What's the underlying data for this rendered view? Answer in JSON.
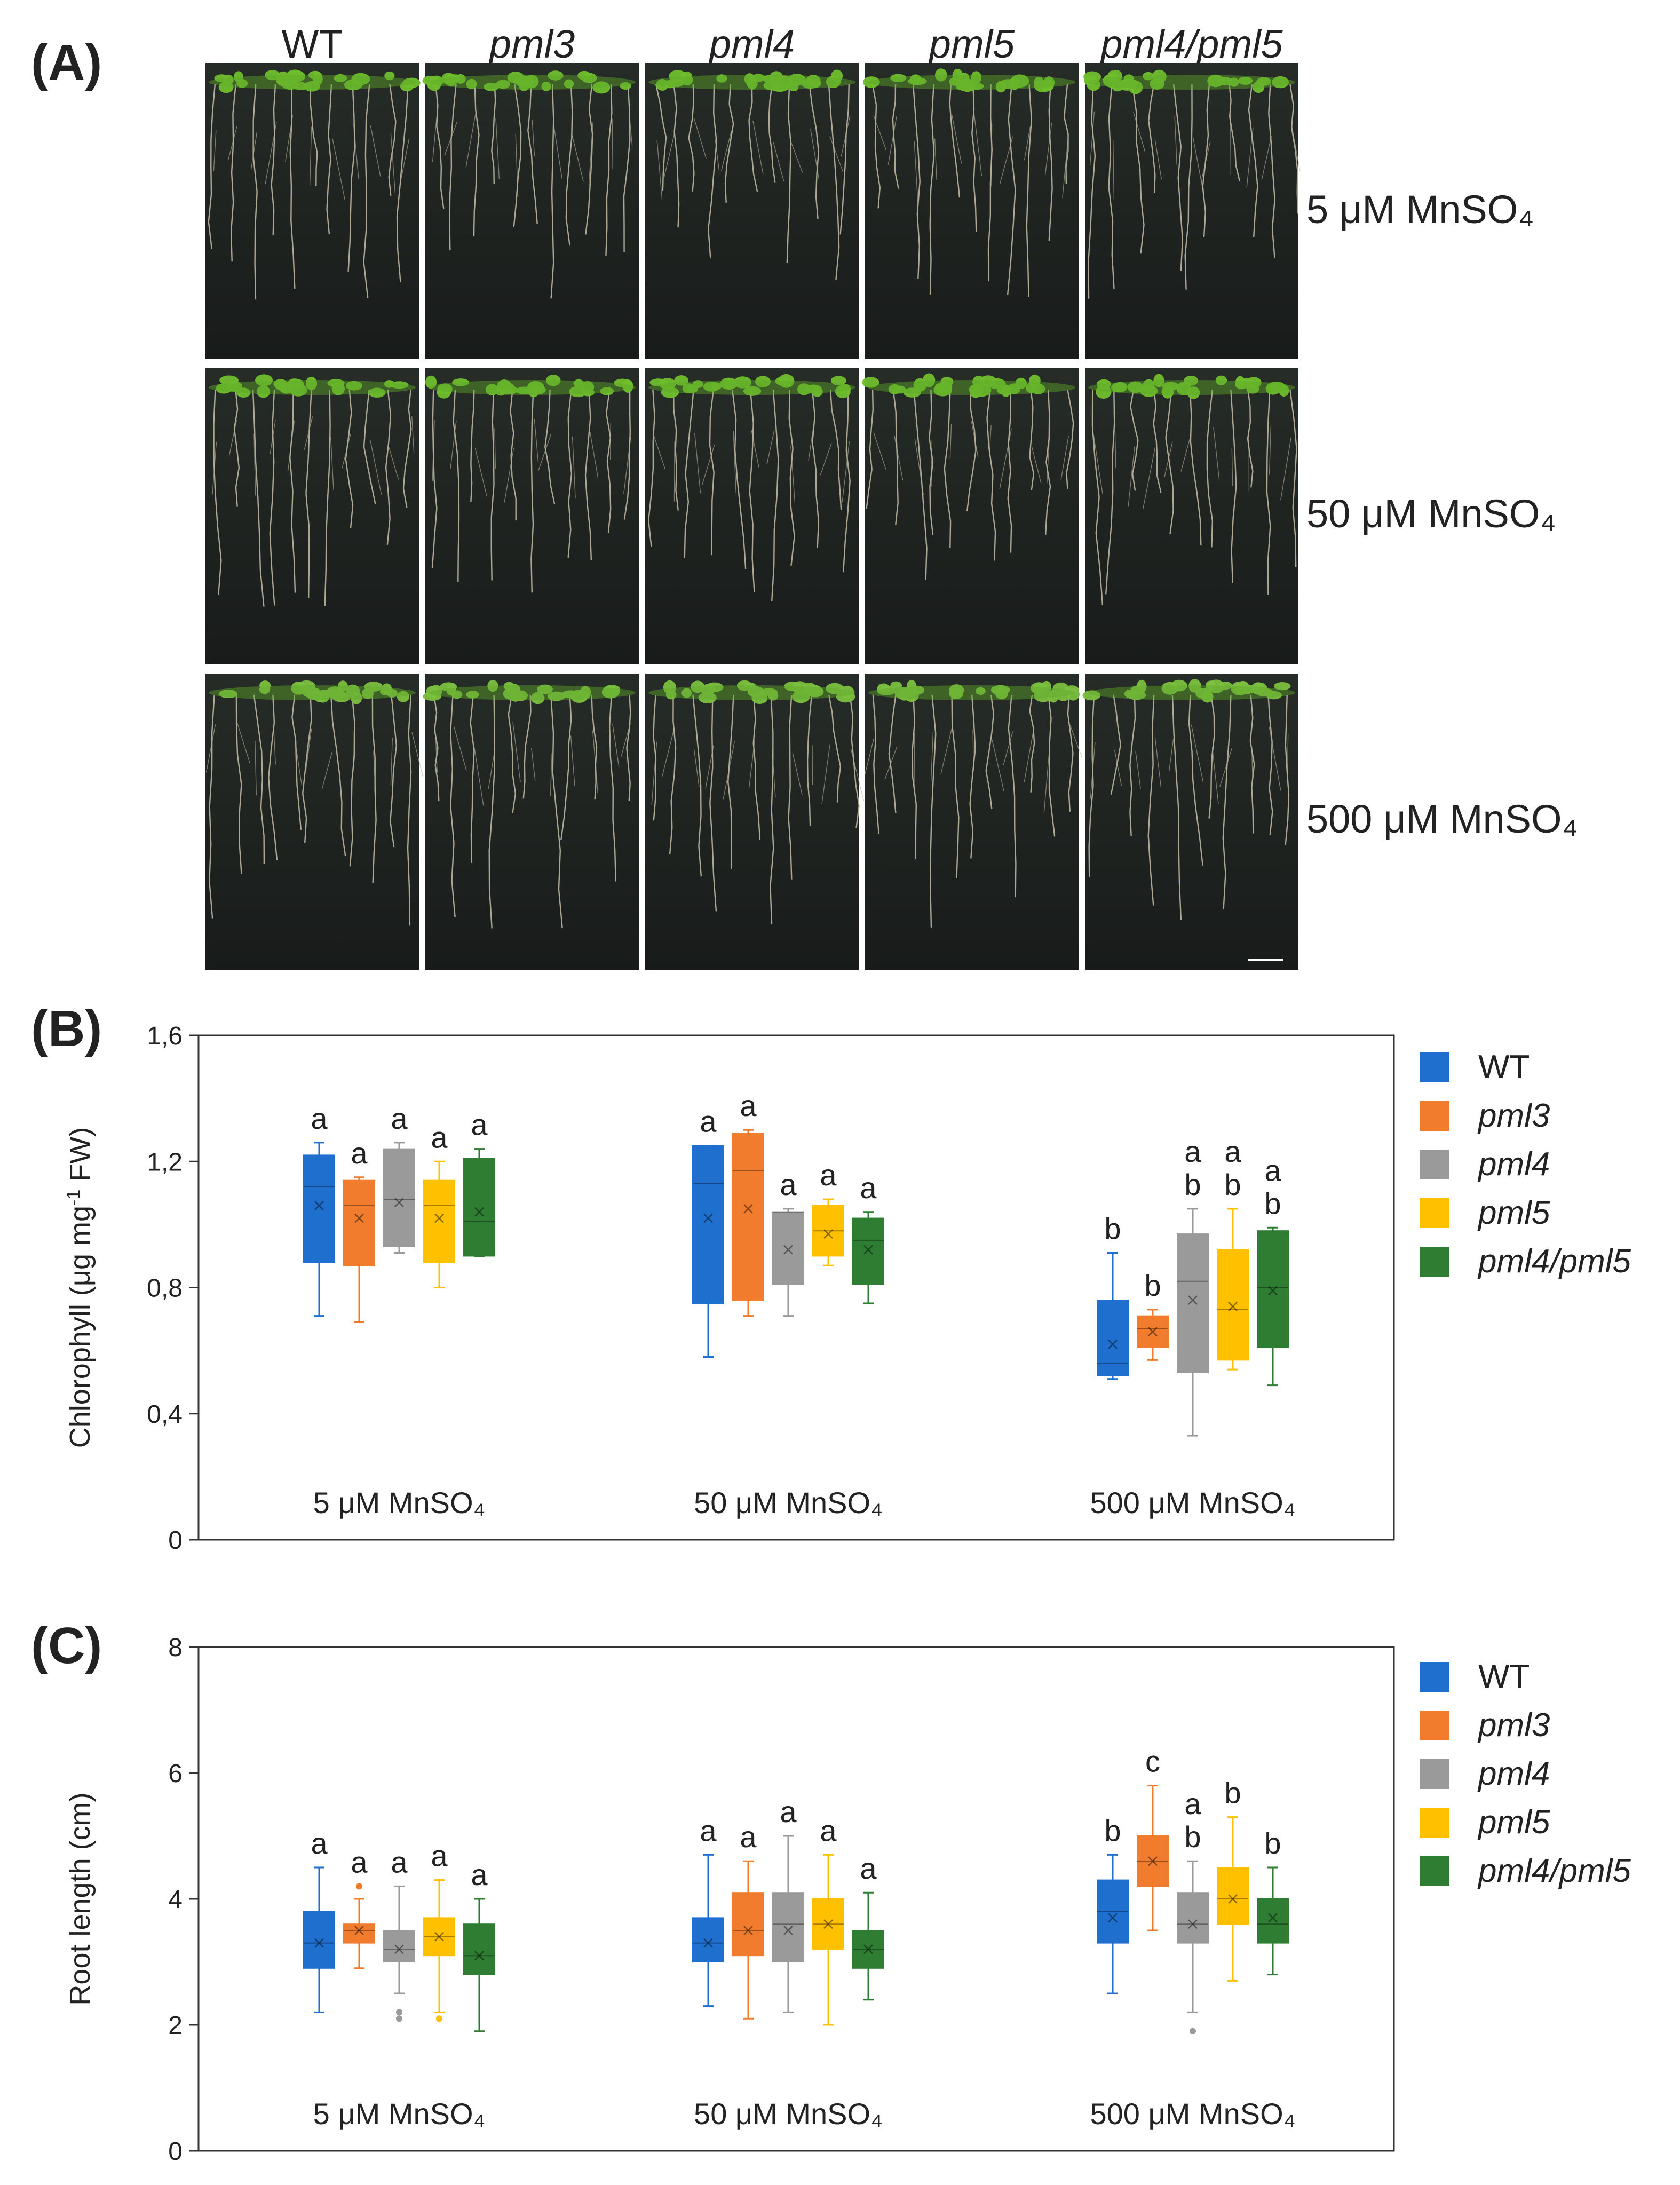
{
  "panel_a": {
    "label": "(A)",
    "columns": [
      "WT",
      "pml3",
      "pml4",
      "pml5",
      "pml4/pml5"
    ],
    "rows": [
      "5 μM MnSO₄",
      "50 μM MnSO₄",
      "500 μM MnSO₄"
    ]
  },
  "chart_data": [
    {
      "type": "box",
      "panel": "(B)",
      "ylabel": "Chlorophyll (μg mg⁻¹ FW)",
      "ylabel_parts": [
        "Chlorophyll (μg mg",
        "-1",
        " FW)"
      ],
      "ylim": [
        0,
        1.6
      ],
      "yticks": [
        0,
        0.4,
        0.8,
        1.2,
        1.6
      ],
      "ytick_labels": [
        "0",
        "0,4",
        "0,8",
        "1,2",
        "1,6"
      ],
      "groups": [
        "5 μM MnSO₄",
        "50 μM MnSO₄",
        "500 μM MnSO₄"
      ],
      "series": [
        {
          "name": "WT",
          "color": "#1f6fcf",
          "boxes": [
            {
              "min": 0.71,
              "q1": 0.88,
              "median": 1.12,
              "q3": 1.22,
              "max": 1.26,
              "mean": 1.06,
              "letters": [
                "a"
              ]
            },
            {
              "min": 0.58,
              "q1": 0.75,
              "median": 1.13,
              "q3": 1.25,
              "max": 1.25,
              "mean": 1.02,
              "letters": [
                "a"
              ]
            },
            {
              "min": 0.51,
              "q1": 0.52,
              "median": 0.56,
              "q3": 0.76,
              "max": 0.91,
              "mean": 0.62,
              "letters": [
                "b"
              ]
            }
          ]
        },
        {
          "name": "pml3",
          "color": "#f27c2e",
          "boxes": [
            {
              "min": 0.69,
              "q1": 0.87,
              "median": 1.06,
              "q3": 1.14,
              "max": 1.15,
              "mean": 1.02,
              "letters": [
                "a"
              ]
            },
            {
              "min": 0.71,
              "q1": 0.76,
              "median": 1.17,
              "q3": 1.29,
              "max": 1.3,
              "mean": 1.05,
              "letters": [
                "a"
              ]
            },
            {
              "min": 0.57,
              "q1": 0.61,
              "median": 0.67,
              "q3": 0.71,
              "max": 0.73,
              "mean": 0.66,
              "letters": [
                "b"
              ]
            }
          ]
        },
        {
          "name": "pml4",
          "color": "#9a9a9a",
          "boxes": [
            {
              "min": 0.91,
              "q1": 0.93,
              "median": 1.08,
              "q3": 1.24,
              "max": 1.26,
              "mean": 1.07,
              "letters": [
                "a"
              ]
            },
            {
              "min": 0.71,
              "q1": 0.81,
              "median": 1.04,
              "q3": 1.04,
              "max": 1.05,
              "mean": 0.92,
              "letters": [
                "a"
              ]
            },
            {
              "min": 0.33,
              "q1": 0.53,
              "median": 0.82,
              "q3": 0.97,
              "max": 1.05,
              "mean": 0.76,
              "letters": [
                "a",
                "b"
              ]
            }
          ]
        },
        {
          "name": "pml5",
          "color": "#ffc000",
          "boxes": [
            {
              "min": 0.8,
              "q1": 0.88,
              "median": 1.06,
              "q3": 1.14,
              "max": 1.2,
              "mean": 1.02,
              "letters": [
                "a"
              ]
            },
            {
              "min": 0.87,
              "q1": 0.9,
              "median": 0.98,
              "q3": 1.06,
              "max": 1.08,
              "mean": 0.97,
              "letters": [
                "a"
              ]
            },
            {
              "min": 0.54,
              "q1": 0.57,
              "median": 0.73,
              "q3": 0.92,
              "max": 1.05,
              "mean": 0.74,
              "letters": [
                "a",
                "b"
              ]
            }
          ]
        },
        {
          "name": "pml4/pml5",
          "color": "#2e7d32",
          "boxes": [
            {
              "min": 0.9,
              "q1": 0.9,
              "median": 1.01,
              "q3": 1.21,
              "max": 1.24,
              "mean": 1.04,
              "letters": [
                "a"
              ]
            },
            {
              "min": 0.75,
              "q1": 0.81,
              "median": 0.95,
              "q3": 1.02,
              "max": 1.04,
              "mean": 0.92,
              "letters": [
                "a"
              ]
            },
            {
              "min": 0.49,
              "q1": 0.61,
              "median": 0.8,
              "q3": 0.98,
              "max": 0.99,
              "mean": 0.79,
              "letters": [
                "a",
                "b"
              ]
            }
          ]
        }
      ]
    },
    {
      "type": "box",
      "panel": "(C)",
      "ylabel": "Root length (cm)",
      "ylim": [
        0,
        8
      ],
      "yticks": [
        0,
        2,
        4,
        6,
        8
      ],
      "ytick_labels": [
        "0",
        "2",
        "4",
        "6",
        "8"
      ],
      "groups": [
        "5 μM MnSO₄",
        "50 μM MnSO₄",
        "500 μM MnSO₄"
      ],
      "series": [
        {
          "name": "WT",
          "color": "#1f6fcf",
          "boxes": [
            {
              "min": 2.2,
              "q1": 2.9,
              "median": 3.3,
              "q3": 3.8,
              "max": 4.5,
              "mean": 3.3,
              "letters": [
                "a"
              ],
              "outliers": []
            },
            {
              "min": 2.3,
              "q1": 3.0,
              "median": 3.3,
              "q3": 3.7,
              "max": 4.7,
              "mean": 3.3,
              "letters": [
                "a"
              ],
              "outliers": []
            },
            {
              "min": 2.5,
              "q1": 3.3,
              "median": 3.8,
              "q3": 4.3,
              "max": 4.7,
              "mean": 3.7,
              "letters": [
                "b"
              ],
              "outliers": []
            }
          ]
        },
        {
          "name": "pml3",
          "color": "#f27c2e",
          "boxes": [
            {
              "min": 2.9,
              "q1": 3.3,
              "median": 3.5,
              "q3": 3.6,
              "max": 4.0,
              "mean": 3.5,
              "letters": [
                "a"
              ],
              "outliers": [
                4.2
              ]
            },
            {
              "min": 2.1,
              "q1": 3.1,
              "median": 3.5,
              "q3": 4.1,
              "max": 4.6,
              "mean": 3.5,
              "letters": [
                "a"
              ],
              "outliers": []
            },
            {
              "min": 3.5,
              "q1": 4.2,
              "median": 4.6,
              "q3": 5.0,
              "max": 5.8,
              "mean": 4.6,
              "letters": [
                "c"
              ],
              "outliers": []
            }
          ]
        },
        {
          "name": "pml4",
          "color": "#9a9a9a",
          "boxes": [
            {
              "min": 2.5,
              "q1": 3.0,
              "median": 3.2,
              "q3": 3.5,
              "max": 4.2,
              "mean": 3.2,
              "letters": [
                "a"
              ],
              "outliers": [
                2.2,
                2.1
              ]
            },
            {
              "min": 2.2,
              "q1": 3.0,
              "median": 3.6,
              "q3": 4.1,
              "max": 5.0,
              "mean": 3.5,
              "letters": [
                "a"
              ],
              "outliers": []
            },
            {
              "min": 2.2,
              "q1": 3.3,
              "median": 3.6,
              "q3": 4.1,
              "max": 4.6,
              "mean": 3.6,
              "letters": [
                "a",
                "b"
              ],
              "outliers": [
                1.9
              ]
            }
          ]
        },
        {
          "name": "pml5",
          "color": "#ffc000",
          "boxes": [
            {
              "min": 2.2,
              "q1": 3.1,
              "median": 3.4,
              "q3": 3.7,
              "max": 4.3,
              "mean": 3.4,
              "letters": [
                "a"
              ],
              "outliers": [
                2.1
              ]
            },
            {
              "min": 2.0,
              "q1": 3.2,
              "median": 3.6,
              "q3": 4.0,
              "max": 4.7,
              "mean": 3.6,
              "letters": [
                "a"
              ],
              "outliers": []
            },
            {
              "min": 2.7,
              "q1": 3.6,
              "median": 4.0,
              "q3": 4.5,
              "max": 5.3,
              "mean": 4.0,
              "letters": [
                "b"
              ],
              "outliers": []
            }
          ]
        },
        {
          "name": "pml4/pml5",
          "color": "#2e7d32",
          "boxes": [
            {
              "min": 1.9,
              "q1": 2.8,
              "median": 3.1,
              "q3": 3.6,
              "max": 4.0,
              "mean": 3.1,
              "letters": [
                "a"
              ],
              "outliers": []
            },
            {
              "min": 2.4,
              "q1": 2.9,
              "median": 3.2,
              "q3": 3.5,
              "max": 4.1,
              "mean": 3.2,
              "letters": [
                "a"
              ],
              "outliers": []
            },
            {
              "min": 2.8,
              "q1": 3.3,
              "median": 3.6,
              "q3": 4.0,
              "max": 4.5,
              "mean": 3.7,
              "letters": [
                "b"
              ],
              "outliers": []
            }
          ]
        }
      ]
    }
  ]
}
